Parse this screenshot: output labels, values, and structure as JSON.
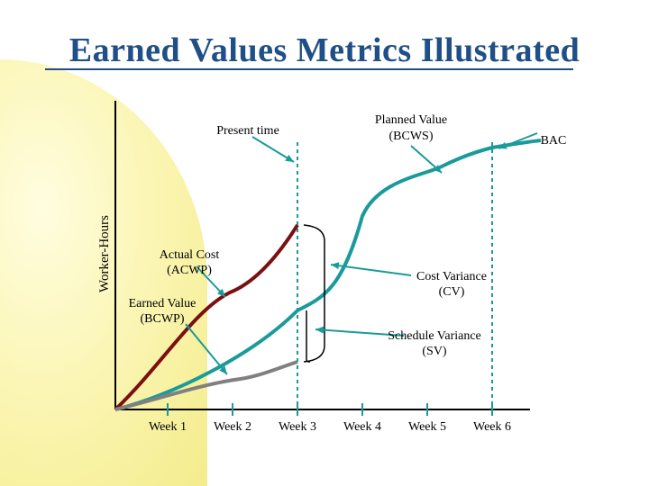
{
  "slide": {
    "title": "Earned Values Metrics Illustrated"
  },
  "diagram": {
    "y_axis_label": "Worker-Hours",
    "weeks": [
      "Week 1",
      "Week 2",
      "Week 3",
      "Week 4",
      "Week 5",
      "Week 6"
    ],
    "labels": {
      "present_time": "Present time",
      "planned_value_1": "Planned Value",
      "planned_value_2": "(BCWS)",
      "bac": "BAC",
      "actual_cost_1": "Actual Cost",
      "actual_cost_2": "(ACWP)",
      "cost_variance_1": "Cost Variance",
      "cost_variance_2": "(CV)",
      "earned_value_1": "Earned Value",
      "earned_value_2": "(BCWP)",
      "schedule_variance_1": "Schedule Variance",
      "schedule_variance_2": "(SV)"
    },
    "colors": {
      "planned": "#1a9a9a",
      "actual": "#7a1010",
      "earned": "#808080",
      "axis": "#000000",
      "dashed": "#1a9a9a"
    }
  }
}
